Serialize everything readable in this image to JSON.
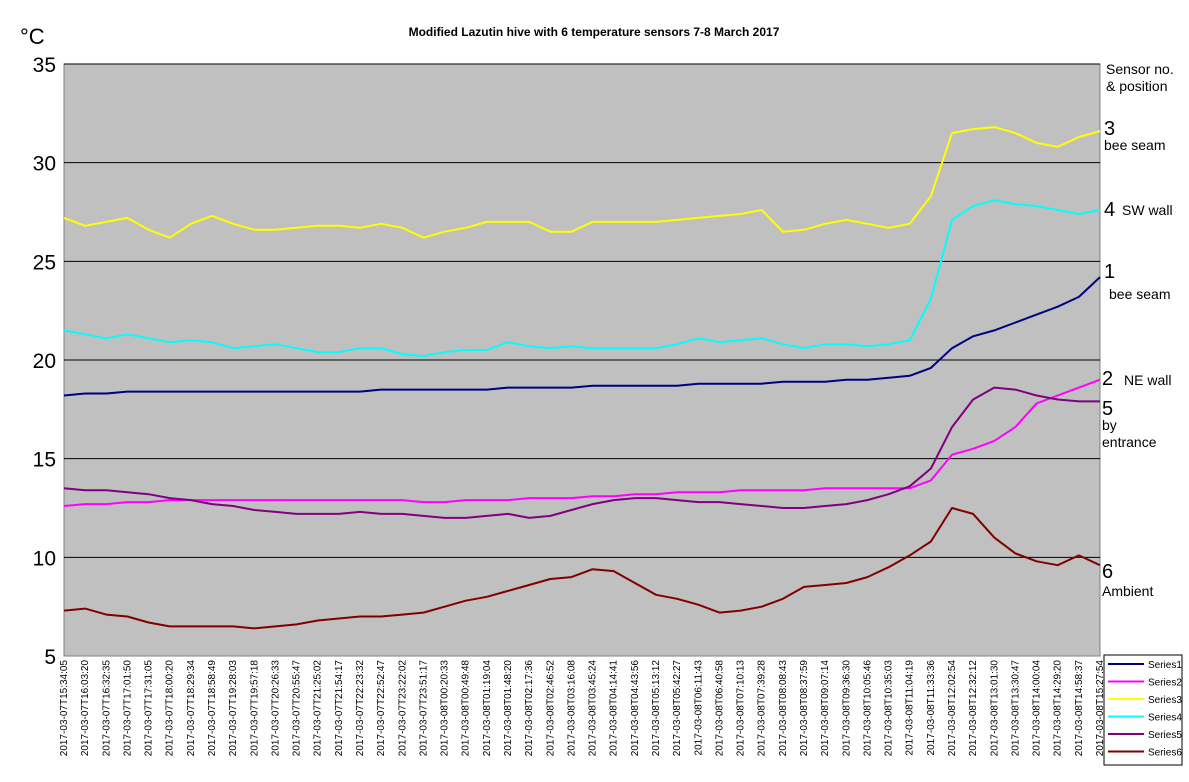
{
  "chart_data": {
    "type": "line",
    "title": "Modified Lazutin hive with 6 temperature sensors 7-8 March 2017",
    "ylabel": "°C",
    "ylim": [
      5,
      35
    ],
    "yticks": [
      "5",
      "10",
      "15",
      "20",
      "25",
      "30",
      "35"
    ],
    "grid": "horizontal",
    "legend_position": "bottom-right",
    "x": [
      "2017-03-07T15:34:05",
      "2017-03-07T16:03:20",
      "2017-03-07T16:32:35",
      "2017-03-07T17:01:50",
      "2017-03-07T17:31:05",
      "2017-03-07T18:00:20",
      "2017-03-07T18:29:34",
      "2017-03-07T18:58:49",
      "2017-03-07T19:28:03",
      "2017-03-07T19:57:18",
      "2017-03-07T20:26:33",
      "2017-03-07T20:55:47",
      "2017-03-07T21:25:02",
      "2017-03-07T21:54:17",
      "2017-03-07T22:23:32",
      "2017-03-07T22:52:47",
      "2017-03-07T23:22:02",
      "2017-03-07T23:51:17",
      "2017-03-08T00:20:33",
      "2017-03-08T00:49:48",
      "2017-03-08T01:19:04",
      "2017-03-08T01:48:20",
      "2017-03-08T02:17:36",
      "2017-03-08T02:46:52",
      "2017-03-08T03:16:08",
      "2017-03-08T03:45:24",
      "2017-03-08T04:14:41",
      "2017-03-08T04:43:56",
      "2017-03-08T05:13:12",
      "2017-03-08T05:42:27",
      "2017-03-08T06:11:43",
      "2017-03-08T06:40:58",
      "2017-03-08T07:10:13",
      "2017-03-08T07:39:28",
      "2017-03-08T08:08:43",
      "2017-03-08T08:37:59",
      "2017-03-08T09:07:14",
      "2017-03-08T09:36:30",
      "2017-03-08T10:05:46",
      "2017-03-08T10:35:03",
      "2017-03-08T11:04:19",
      "2017-03-08T11:33:36",
      "2017-03-08T12:02:54",
      "2017-03-08T12:32:12",
      "2017-03-08T13:01:30",
      "2017-03-08T13:30:47",
      "2017-03-08T14:00:04",
      "2017-03-08T14:29:20",
      "2017-03-08T14:58:37",
      "2017-03-08T15:27:54"
    ],
    "series": [
      {
        "name": "Series1",
        "color": "#000080",
        "values": [
          18.2,
          18.3,
          18.3,
          18.4,
          18.4,
          18.4,
          18.4,
          18.4,
          18.4,
          18.4,
          18.4,
          18.4,
          18.4,
          18.4,
          18.4,
          18.5,
          18.5,
          18.5,
          18.5,
          18.5,
          18.5,
          18.6,
          18.6,
          18.6,
          18.6,
          18.7,
          18.7,
          18.7,
          18.7,
          18.7,
          18.8,
          18.8,
          18.8,
          18.8,
          18.9,
          18.9,
          18.9,
          19.0,
          19.0,
          19.1,
          19.2,
          19.6,
          20.6,
          21.2,
          21.5,
          21.9,
          22.3,
          22.7,
          23.2,
          24.2
        ]
      },
      {
        "name": "Series2",
        "color": "#FF00FF",
        "values": [
          12.6,
          12.7,
          12.7,
          12.8,
          12.8,
          12.9,
          12.9,
          12.9,
          12.9,
          12.9,
          12.9,
          12.9,
          12.9,
          12.9,
          12.9,
          12.9,
          12.9,
          12.8,
          12.8,
          12.9,
          12.9,
          12.9,
          13.0,
          13.0,
          13.0,
          13.1,
          13.1,
          13.2,
          13.2,
          13.3,
          13.3,
          13.3,
          13.4,
          13.4,
          13.4,
          13.4,
          13.5,
          13.5,
          13.5,
          13.5,
          13.5,
          13.9,
          15.2,
          15.5,
          15.9,
          16.6,
          17.8,
          18.2,
          18.6,
          19.0
        ]
      },
      {
        "name": "Series3",
        "color": "#FFFF00",
        "values": [
          27.2,
          26.8,
          27.0,
          27.2,
          26.6,
          26.2,
          26.9,
          27.3,
          26.9,
          26.6,
          26.6,
          26.7,
          26.8,
          26.8,
          26.7,
          26.9,
          26.7,
          26.2,
          26.5,
          26.7,
          27.0,
          27.0,
          27.0,
          26.5,
          26.5,
          27.0,
          27.0,
          27.0,
          27.0,
          27.1,
          27.2,
          27.3,
          27.4,
          27.6,
          26.5,
          26.6,
          26.9,
          27.1,
          26.9,
          26.7,
          26.9,
          28.3,
          31.5,
          31.7,
          31.8,
          31.5,
          31.0,
          30.8,
          31.3,
          31.6
        ]
      },
      {
        "name": "Series4",
        "color": "#00FFFF",
        "values": [
          21.5,
          21.3,
          21.1,
          21.3,
          21.1,
          20.9,
          21.0,
          20.9,
          20.6,
          20.7,
          20.8,
          20.6,
          20.4,
          20.4,
          20.6,
          20.6,
          20.3,
          20.2,
          20.4,
          20.5,
          20.5,
          20.9,
          20.7,
          20.6,
          20.7,
          20.6,
          20.6,
          20.6,
          20.6,
          20.8,
          21.1,
          20.9,
          21.0,
          21.1,
          20.8,
          20.6,
          20.8,
          20.8,
          20.7,
          20.8,
          21.0,
          23.1,
          27.1,
          27.8,
          28.1,
          27.9,
          27.8,
          27.6,
          27.4,
          27.6
        ]
      },
      {
        "name": "Series5",
        "color": "#800080",
        "values": [
          13.5,
          13.4,
          13.4,
          13.3,
          13.2,
          13.0,
          12.9,
          12.7,
          12.6,
          12.4,
          12.3,
          12.2,
          12.2,
          12.2,
          12.3,
          12.2,
          12.2,
          12.1,
          12.0,
          12.0,
          12.1,
          12.2,
          12.0,
          12.1,
          12.4,
          12.7,
          12.9,
          13.0,
          13.0,
          12.9,
          12.8,
          12.8,
          12.7,
          12.6,
          12.5,
          12.5,
          12.6,
          12.7,
          12.9,
          13.2,
          13.6,
          14.5,
          16.6,
          18.0,
          18.6,
          18.5,
          18.2,
          18.0,
          17.9,
          17.9
        ]
      },
      {
        "name": "Series6",
        "color": "#800000",
        "values": [
          7.3,
          7.4,
          7.1,
          7.0,
          6.7,
          6.5,
          6.5,
          6.5,
          6.5,
          6.4,
          6.5,
          6.6,
          6.8,
          6.9,
          7.0,
          7.0,
          7.1,
          7.2,
          7.5,
          7.8,
          8.0,
          8.3,
          8.6,
          8.9,
          9.0,
          9.4,
          9.3,
          8.7,
          8.1,
          7.9,
          7.6,
          7.2,
          7.3,
          7.5,
          7.9,
          8.5,
          8.6,
          8.7,
          9.0,
          9.5,
          10.1,
          10.8,
          12.5,
          12.2,
          11.0,
          10.2,
          9.8,
          9.6,
          10.1,
          9.6
        ]
      }
    ],
    "annotations": {
      "header": [
        "Sensor no.",
        "& position"
      ],
      "sensors": [
        {
          "number": "3",
          "label": "bee seam",
          "value": 31.6
        },
        {
          "number": "4",
          "label": "SW wall",
          "value": 27.6
        },
        {
          "number": "1",
          "label": "bee seam",
          "value": 24.2
        },
        {
          "number": "2",
          "label": "NE wall",
          "value": 19.0
        },
        {
          "number": "5",
          "label": "by",
          "label2": "entrance",
          "value": 17.9
        },
        {
          "number": "6",
          "label": "Ambient",
          "value": 9.6
        }
      ]
    }
  }
}
